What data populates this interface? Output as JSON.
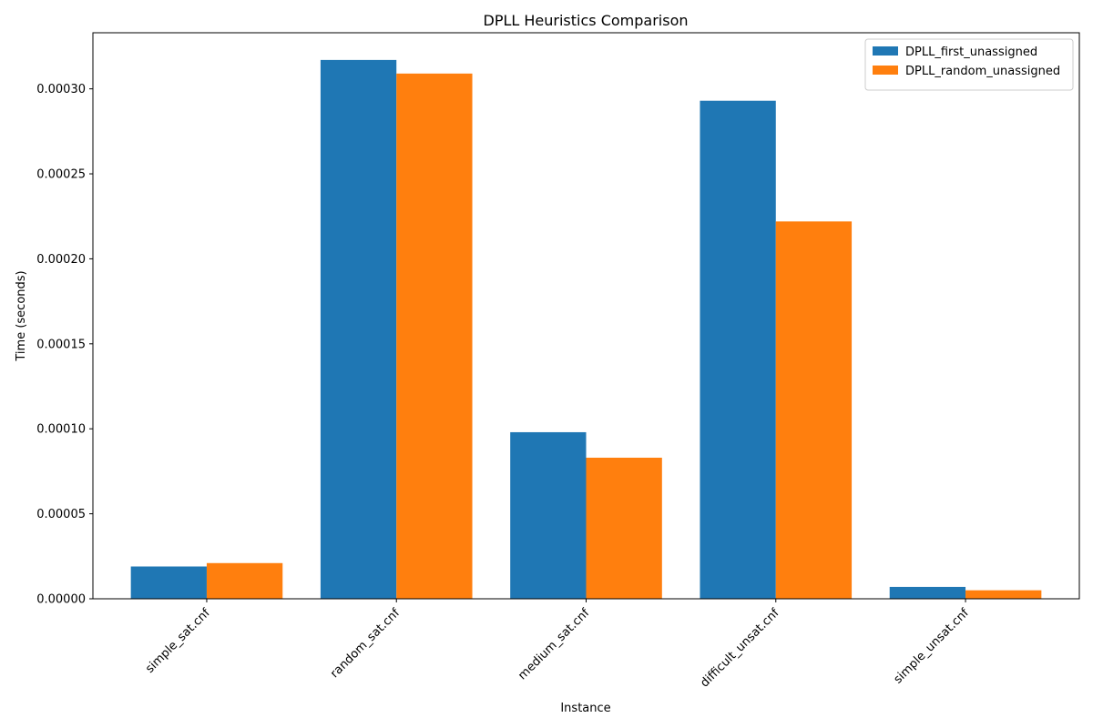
{
  "chart_data": {
    "type": "bar",
    "title": "DPLL Heuristics Comparison",
    "xlabel": "Instance",
    "ylabel": "Time (seconds)",
    "categories": [
      "simple_sat.cnf",
      "random_sat.cnf",
      "medium_sat.cnf",
      "difficult_unsat.cnf",
      "simple_unsat.cnf"
    ],
    "series": [
      {
        "name": "DPLL_first_unassigned",
        "color": "#1f77b4",
        "values": [
          1.9e-05,
          0.000317,
          9.8e-05,
          0.000293,
          7e-06
        ]
      },
      {
        "name": "DPLL_random_unassigned",
        "color": "#ff7f0e",
        "values": [
          2.1e-05,
          0.000309,
          8.3e-05,
          0.000222,
          5e-06
        ]
      }
    ],
    "ylim": [
      0,
      0.000333
    ],
    "yticks": [
      0,
      5e-05,
      0.0001,
      0.00015,
      0.0002,
      0.00025,
      0.0003
    ],
    "ytick_labels": [
      "0.00000",
      "0.00005",
      "0.00010",
      "0.00015",
      "0.00020",
      "0.00025",
      "0.00030"
    ],
    "legend_position": "top-right",
    "grid": false
  }
}
